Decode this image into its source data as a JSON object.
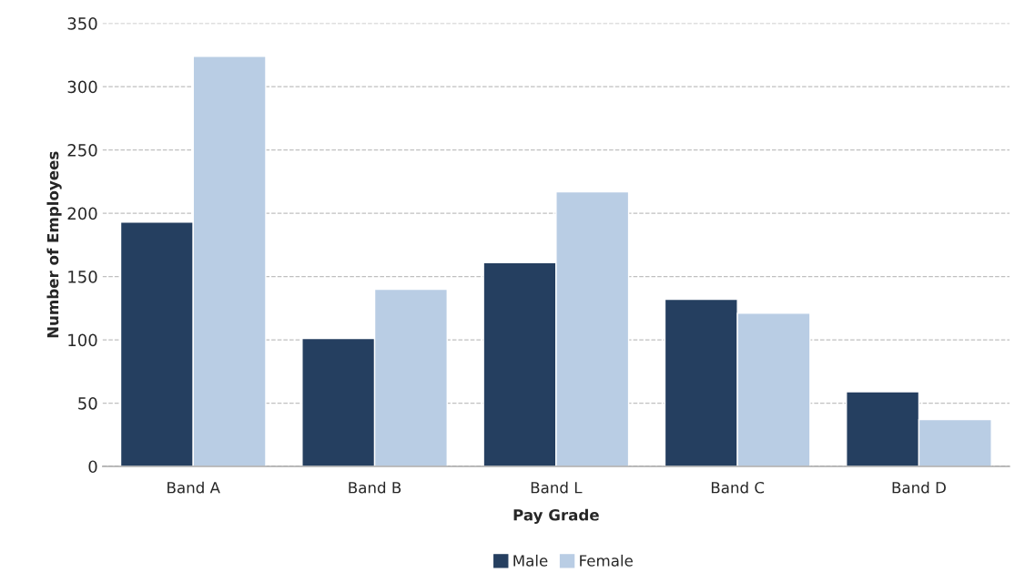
{
  "chart_data": {
    "type": "bar",
    "xlabel": "Pay Grade",
    "ylabel": "Number of Employees",
    "categories": [
      "Band A",
      "Band B",
      "Band L",
      "Band C",
      "Band D"
    ],
    "series": [
      {
        "name": "Male",
        "color": "#253f60",
        "values": [
          193,
          101,
          161,
          132,
          59
        ]
      },
      {
        "name": "Female",
        "color": "#b9cde4",
        "values": [
          324,
          140,
          217,
          121,
          37
        ]
      }
    ],
    "ylim": [
      0,
      350
    ],
    "yticks": [
      0,
      50,
      100,
      150,
      200,
      250,
      300,
      350
    ],
    "grid": "y",
    "legend": "bottom"
  }
}
